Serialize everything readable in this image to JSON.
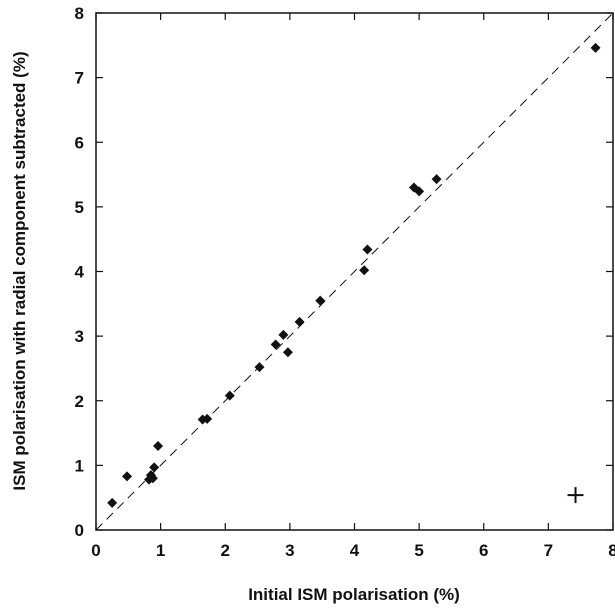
{
  "chart_data": {
    "type": "scatter",
    "xlabel": "Initial ISM polarisation (%)",
    "ylabel": "ISM polarisation with radial component subtracted (%)",
    "xlim": [
      0,
      8
    ],
    "ylim": [
      0,
      8
    ],
    "xticks": [
      "0",
      "1",
      "2",
      "3",
      "4",
      "5",
      "6",
      "7",
      "8"
    ],
    "yticks": [
      "0",
      "1",
      "2",
      "3",
      "4",
      "5",
      "6",
      "7",
      "8"
    ],
    "grid": false,
    "reference_line": {
      "style": "dashed",
      "from": [
        0,
        0
      ],
      "to": [
        8,
        8
      ]
    },
    "points": [
      {
        "x": 0.25,
        "y": 0.42
      },
      {
        "x": 0.48,
        "y": 0.83
      },
      {
        "x": 0.82,
        "y": 0.78
      },
      {
        "x": 0.85,
        "y": 0.85
      },
      {
        "x": 0.88,
        "y": 0.8
      },
      {
        "x": 0.9,
        "y": 0.97
      },
      {
        "x": 0.96,
        "y": 1.3
      },
      {
        "x": 1.65,
        "y": 1.71
      },
      {
        "x": 1.72,
        "y": 1.72
      },
      {
        "x": 2.07,
        "y": 2.08
      },
      {
        "x": 2.53,
        "y": 2.52
      },
      {
        "x": 2.78,
        "y": 2.87
      },
      {
        "x": 2.9,
        "y": 3.02
      },
      {
        "x": 2.97,
        "y": 2.75
      },
      {
        "x": 3.15,
        "y": 3.22
      },
      {
        "x": 3.47,
        "y": 3.55
      },
      {
        "x": 4.15,
        "y": 4.02
      },
      {
        "x": 4.2,
        "y": 4.34
      },
      {
        "x": 4.92,
        "y": 5.3
      },
      {
        "x": 5.0,
        "y": 5.24
      },
      {
        "x": 5.27,
        "y": 5.43
      },
      {
        "x": 7.73,
        "y": 7.46
      }
    ],
    "error_marker": {
      "x": 7.42,
      "y": 0.54
    }
  }
}
